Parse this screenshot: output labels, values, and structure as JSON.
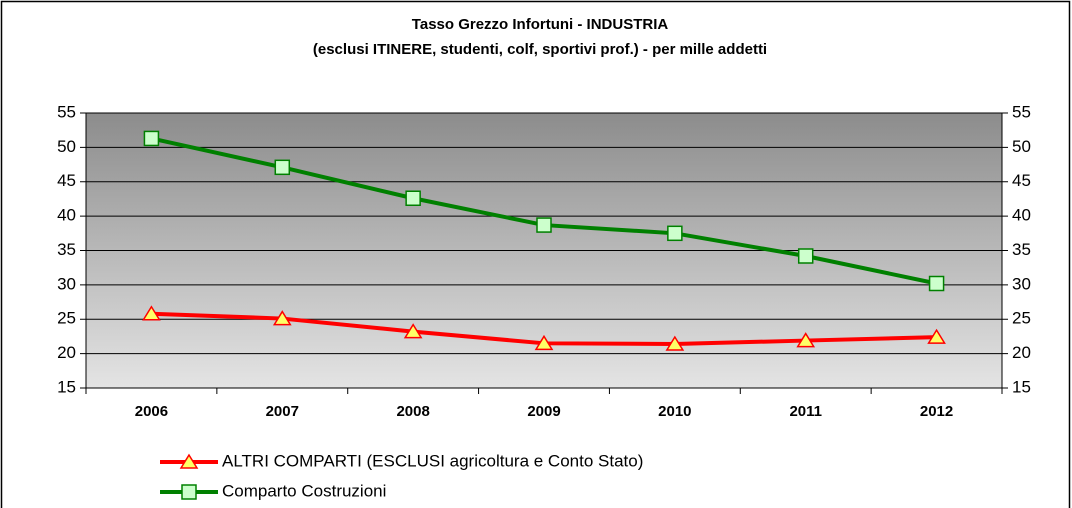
{
  "chart_data": {
    "type": "line",
    "title": "Tasso Grezzo Infortuni - INDUSTRIA",
    "subtitle": "(esclusi ITINERE, studenti, colf, sportivi prof.) - per mille addetti",
    "categories": [
      "2006",
      "2007",
      "2008",
      "2009",
      "2010",
      "2011",
      "2012"
    ],
    "series": [
      {
        "name": "ALTRI COMPARTI (ESCLUSI agricoltura e Conto Stato)",
        "color": "#ff0000",
        "marker": "triangle",
        "marker_color": "#ffff66",
        "values": [
          25.8,
          25.1,
          23.2,
          21.5,
          21.4,
          21.9,
          22.4
        ]
      },
      {
        "name": "Comparto Costruzioni",
        "color": "#008000",
        "marker": "square",
        "marker_color": "#ccffcc",
        "values": [
          51.3,
          47.1,
          42.6,
          38.7,
          37.5,
          34.2,
          30.2
        ]
      }
    ],
    "ylim": [
      15,
      55
    ],
    "yticks": [
      15,
      20,
      25,
      30,
      35,
      40,
      45,
      50,
      55
    ],
    "y2lim": [
      15,
      55
    ],
    "y2ticks": [
      15,
      20,
      25,
      30,
      35,
      40,
      45,
      50,
      55
    ],
    "grid": true,
    "legend": "bottom"
  }
}
